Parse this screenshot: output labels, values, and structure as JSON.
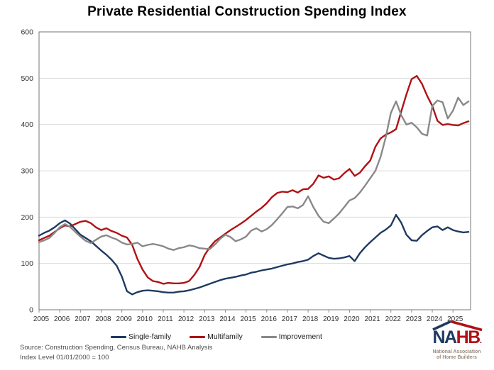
{
  "title": "Private Residential Construction Spending Index",
  "source_line1": "Source: Construction Spending, Census Bureau, NAHB Analysis",
  "source_line2": "Index Level 01/01/2000 = 100",
  "colors": {
    "single_family": "#1f3a60",
    "multifamily": "#b01115",
    "improvement": "#898989",
    "grid": "#dcdcdc",
    "axis": "#8c8c8c",
    "tick_text": "#333333"
  },
  "legend": [
    {
      "label": "Single-family"
    },
    {
      "label": "Multifamily"
    },
    {
      "label": "Improvement"
    }
  ],
  "logo": {
    "na": "NA",
    "hb": "HB",
    "dot": ".",
    "star": "★",
    "sub1": "National Association",
    "sub2": "of Home Builders",
    "navy": "#1f3a60",
    "red": "#b01115"
  },
  "chart_data": {
    "type": "line",
    "title": "Private Residential Construction Spending Index",
    "xlabel": "",
    "ylabel": "",
    "xlim": [
      2005,
      2025.85
    ],
    "ylim": [
      0,
      600
    ],
    "y_ticks": [
      0,
      100,
      200,
      300,
      400,
      500,
      600
    ],
    "x_ticks": [
      2005,
      2006,
      2007,
      2008,
      2009,
      2010,
      2011,
      2012,
      2013,
      2014,
      2015,
      2016,
      2017,
      2018,
      2019,
      2020,
      2021,
      2022,
      2023,
      2024,
      2025
    ],
    "grid": "horizontal",
    "legend_position": "bottom",
    "x_start": 2005,
    "x_step": 0.25,
    "series": [
      {
        "name": "Single-family",
        "color": "#1f3a60",
        "values": [
          160,
          166,
          171,
          178,
          187,
          193,
          186,
          174,
          162,
          155,
          148,
          138,
          128,
          119,
          108,
          95,
          72,
          40,
          33,
          38,
          41,
          42,
          41,
          40,
          38,
          37,
          37,
          39,
          40,
          42,
          45,
          48,
          52,
          56,
          60,
          64,
          67,
          69,
          71,
          74,
          76,
          80,
          82,
          85,
          87,
          89,
          92,
          95,
          98,
          100,
          103,
          105,
          108,
          116,
          122,
          117,
          112,
          110,
          111,
          113,
          116,
          105,
          122,
          135,
          146,
          156,
          166,
          173,
          182,
          205,
          188,
          162,
          150,
          149,
          161,
          170,
          178,
          180,
          172,
          178,
          172,
          169,
          167,
          168
        ]
      },
      {
        "name": "Multifamily",
        "color": "#b01115",
        "values": [
          150,
          155,
          160,
          168,
          176,
          182,
          180,
          185,
          190,
          192,
          187,
          178,
          172,
          176,
          170,
          166,
          160,
          156,
          140,
          110,
          87,
          70,
          62,
          60,
          56,
          58,
          57,
          57,
          58,
          62,
          75,
          92,
          118,
          135,
          148,
          156,
          164,
          172,
          179,
          186,
          194,
          203,
          212,
          220,
          230,
          243,
          252,
          255,
          254,
          258,
          253,
          260,
          261,
          272,
          290,
          285,
          288,
          281,
          284,
          295,
          304,
          289,
          296,
          310,
          322,
          352,
          370,
          378,
          383,
          390,
          428,
          465,
          498,
          505,
          488,
          462,
          440,
          408,
          399,
          401,
          399,
          398,
          403,
          407
        ]
      },
      {
        "name": "Improvement",
        "color": "#898989",
        "values": [
          146,
          150,
          155,
          166,
          178,
          185,
          179,
          168,
          158,
          149,
          144,
          151,
          158,
          161,
          156,
          152,
          145,
          141,
          142,
          145,
          137,
          140,
          142,
          140,
          137,
          132,
          129,
          133,
          135,
          139,
          137,
          133,
          132,
          131,
          141,
          153,
          162,
          157,
          148,
          152,
          158,
          171,
          176,
          169,
          174,
          183,
          195,
          208,
          222,
          223,
          219,
          226,
          245,
          222,
          203,
          190,
          187,
          197,
          208,
          222,
          236,
          241,
          253,
          268,
          284,
          300,
          330,
          372,
          425,
          450,
          420,
          400,
          404,
          394,
          380,
          376,
          440,
          452,
          448,
          413,
          430,
          458,
          442,
          450
        ]
      }
    ]
  }
}
